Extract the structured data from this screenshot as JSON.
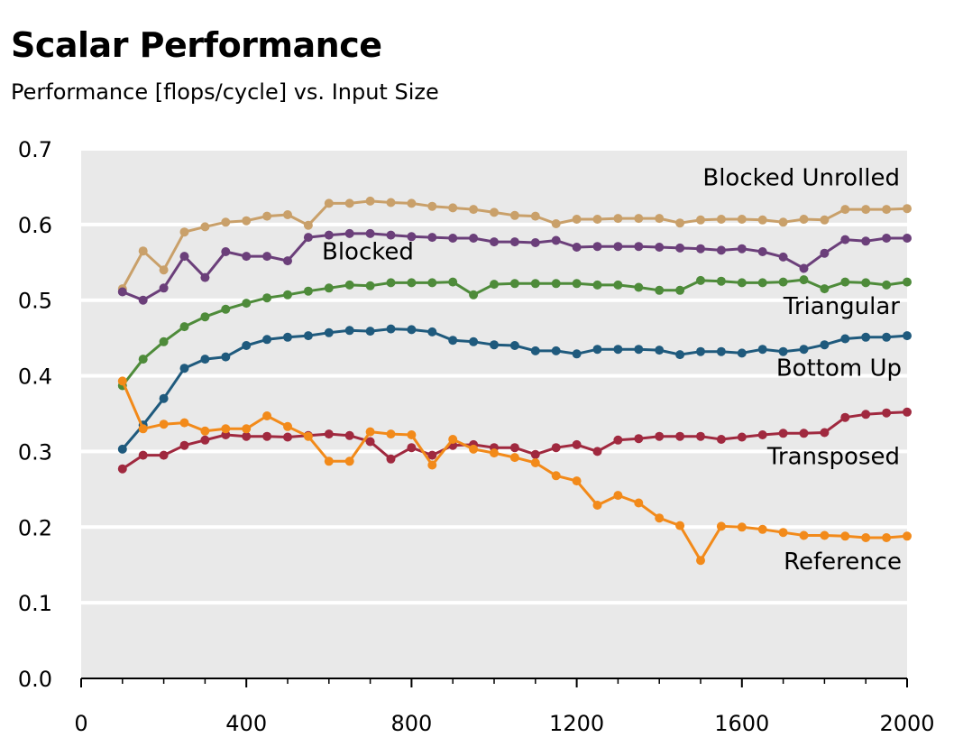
{
  "chart_data": {
    "type": "line",
    "title": "Scalar Performance",
    "subtitle": "Performance [flops/cycle] vs. Input Size",
    "xlabel": "",
    "ylabel": "",
    "xlim": [
      0,
      2000
    ],
    "ylim": [
      0.0,
      0.7
    ],
    "x_ticks": [
      "0",
      "400",
      "800",
      "1200",
      "1600",
      "2000"
    ],
    "y_ticks": [
      "0.0",
      "0.1",
      "0.2",
      "0.3",
      "0.4",
      "0.5",
      "0.6",
      "0.7"
    ],
    "grid": "horizontal",
    "background": "#e9e9e9",
    "legend": "inline labels next to lines",
    "x": [
      100,
      150,
      200,
      250,
      300,
      350,
      400,
      450,
      500,
      550,
      600,
      650,
      700,
      750,
      800,
      850,
      900,
      950,
      1000,
      1050,
      1100,
      1150,
      1200,
      1250,
      1300,
      1350,
      1400,
      1450,
      1500,
      1550,
      1600,
      1650,
      1700,
      1750,
      1800,
      1850,
      1900,
      1950,
      2000
    ],
    "series": [
      {
        "name": "Blocked Unrolled",
        "color": "#c9a06a",
        "values": [
          0.515,
          0.565,
          0.54,
          0.59,
          0.597,
          0.603,
          0.605,
          0.611,
          0.613,
          0.599,
          0.628,
          0.628,
          0.631,
          0.629,
          0.628,
          0.624,
          0.622,
          0.62,
          0.616,
          0.612,
          0.611,
          0.601,
          0.607,
          0.607,
          0.608,
          0.608,
          0.608,
          0.602,
          0.606,
          0.607,
          0.607,
          0.606,
          0.603,
          0.607,
          0.606,
          0.62,
          0.62,
          0.62,
          0.621
        ]
      },
      {
        "name": "Blocked",
        "color": "#6b3f7a",
        "values": [
          0.511,
          0.5,
          0.516,
          0.558,
          0.53,
          0.564,
          0.558,
          0.558,
          0.552,
          0.583,
          0.586,
          0.588,
          0.588,
          0.586,
          0.584,
          0.583,
          0.582,
          0.582,
          0.577,
          0.577,
          0.576,
          0.579,
          0.57,
          0.571,
          0.571,
          0.571,
          0.57,
          0.569,
          0.568,
          0.566,
          0.568,
          0.564,
          0.557,
          0.542,
          0.562,
          0.58,
          0.578,
          0.582,
          0.582
        ]
      },
      {
        "name": "Triangular",
        "color": "#4e8b3a",
        "values": [
          0.387,
          0.422,
          0.445,
          0.465,
          0.478,
          0.488,
          0.496,
          0.503,
          0.507,
          0.512,
          0.516,
          0.52,
          0.519,
          0.523,
          0.523,
          0.523,
          0.524,
          0.507,
          0.521,
          0.522,
          0.522,
          0.522,
          0.522,
          0.52,
          0.52,
          0.517,
          0.513,
          0.513,
          0.526,
          0.525,
          0.523,
          0.523,
          0.524,
          0.527,
          0.515,
          0.524,
          0.523,
          0.52,
          0.524
        ]
      },
      {
        "name": "Bottom Up",
        "color": "#1f5a7d",
        "values": [
          0.303,
          0.335,
          0.37,
          0.41,
          0.422,
          0.425,
          0.44,
          0.448,
          0.451,
          0.453,
          0.457,
          0.46,
          0.459,
          0.462,
          0.461,
          0.458,
          0.447,
          0.445,
          0.441,
          0.44,
          0.433,
          0.433,
          0.429,
          0.435,
          0.435,
          0.435,
          0.434,
          0.428,
          0.432,
          0.432,
          0.43,
          0.435,
          0.432,
          0.435,
          0.441,
          0.449,
          0.451,
          0.451,
          0.453
        ]
      },
      {
        "name": "Transposed",
        "color": "#a0293f",
        "values": [
          0.277,
          0.295,
          0.295,
          0.308,
          0.315,
          0.322,
          0.32,
          0.32,
          0.319,
          0.321,
          0.323,
          0.321,
          0.313,
          0.29,
          0.305,
          0.295,
          0.308,
          0.309,
          0.305,
          0.305,
          0.296,
          0.305,
          0.309,
          0.3,
          0.315,
          0.317,
          0.32,
          0.32,
          0.32,
          0.316,
          0.319,
          0.322,
          0.324,
          0.324,
          0.325,
          0.345,
          0.349,
          0.351,
          0.352
        ]
      },
      {
        "name": "Reference",
        "color": "#f28a1a",
        "values": [
          0.393,
          0.33,
          0.336,
          0.338,
          0.327,
          0.33,
          0.33,
          0.347,
          0.333,
          0.32,
          0.287,
          0.287,
          0.326,
          0.323,
          0.322,
          0.282,
          0.316,
          0.303,
          0.298,
          0.292,
          0.285,
          0.268,
          0.261,
          0.229,
          0.242,
          0.232,
          0.212,
          0.202,
          0.156,
          0.201,
          0.2,
          0.197,
          0.193,
          0.189,
          0.189,
          0.188,
          0.186,
          0.186,
          0.188
        ]
      }
    ]
  }
}
